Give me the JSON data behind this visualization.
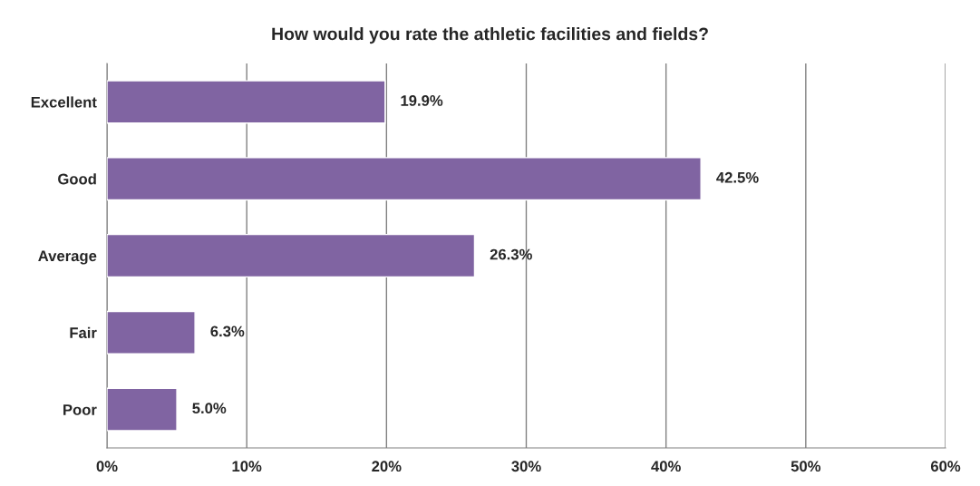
{
  "chart_data": {
    "type": "bar",
    "orientation": "horizontal",
    "title": "How would you rate the athletic facilities and fields?",
    "categories": [
      "Excellent",
      "Good",
      "Average",
      "Fair",
      "Poor"
    ],
    "values": [
      19.9,
      42.5,
      26.3,
      6.3,
      5.0
    ],
    "value_labels": [
      "19.9%",
      "42.5%",
      "26.3%",
      "6.3%",
      "5.0%"
    ],
    "color": "#8064a2",
    "xlim": [
      0,
      60
    ],
    "xticks": [
      {
        "value": 0,
        "label": "0%"
      },
      {
        "value": 10,
        "label": "10%"
      },
      {
        "value": 20,
        "label": "20%"
      },
      {
        "value": 30,
        "label": "30%"
      },
      {
        "value": 40,
        "label": "40%"
      },
      {
        "value": 50,
        "label": "50%"
      },
      {
        "value": 60,
        "label": "60%"
      }
    ],
    "grid": "x"
  }
}
